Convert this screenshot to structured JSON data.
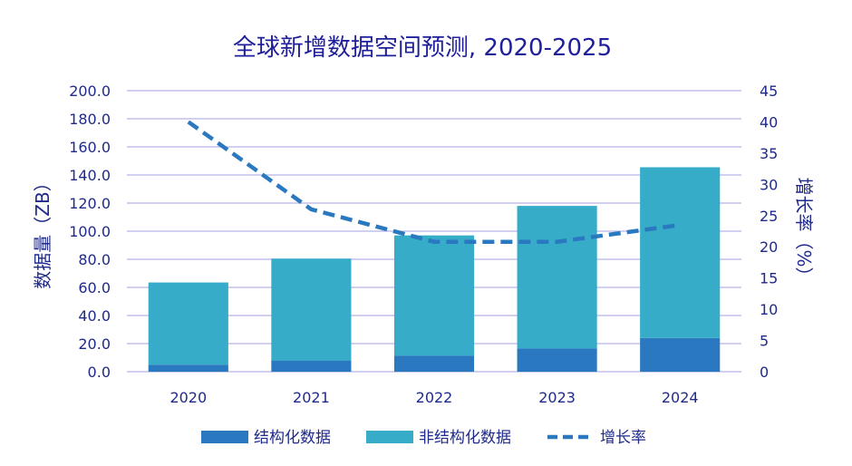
{
  "chart_data": {
    "type": "bar",
    "title": "全球新增数据空间预测, 2020-2025",
    "categories": [
      "2020",
      "2021",
      "2022",
      "2023",
      "2024"
    ],
    "series": [
      {
        "name": "结构化数据",
        "kind": "stacked-bar",
        "axis": "left",
        "color": "#2a78bf",
        "values": [
          5.0,
          8.0,
          11.5,
          16.5,
          24.0
        ]
      },
      {
        "name": "非结构化数据",
        "kind": "stacked-bar",
        "axis": "left",
        "color": "#36acc8",
        "values": [
          58.5,
          72.5,
          85.5,
          101.5,
          121.5
        ]
      },
      {
        "name": "增长率",
        "kind": "dashed-line",
        "axis": "right",
        "color": "#2a78bf",
        "values": [
          40.0,
          26.0,
          20.8,
          20.8,
          23.5
        ]
      }
    ],
    "ylabel": "数据量（ZB）",
    "y2label": "增长率（%）",
    "ylim": [
      0,
      200
    ],
    "y2lim": [
      0,
      45
    ],
    "yticks": [
      "0.0",
      "20.0",
      "40.0",
      "60.0",
      "80.0",
      "100.0",
      "120.0",
      "140.0",
      "160.0",
      "180.0",
      "200.0"
    ],
    "y2ticks": [
      "0",
      "5",
      "10",
      "15",
      "20",
      "25",
      "30",
      "35",
      "40",
      "45"
    ],
    "grid": true,
    "legend_position": "bottom",
    "colors": {
      "grid": "#b7b4e6",
      "text": "#1f2a8a",
      "title": "#1f1f9c"
    }
  }
}
